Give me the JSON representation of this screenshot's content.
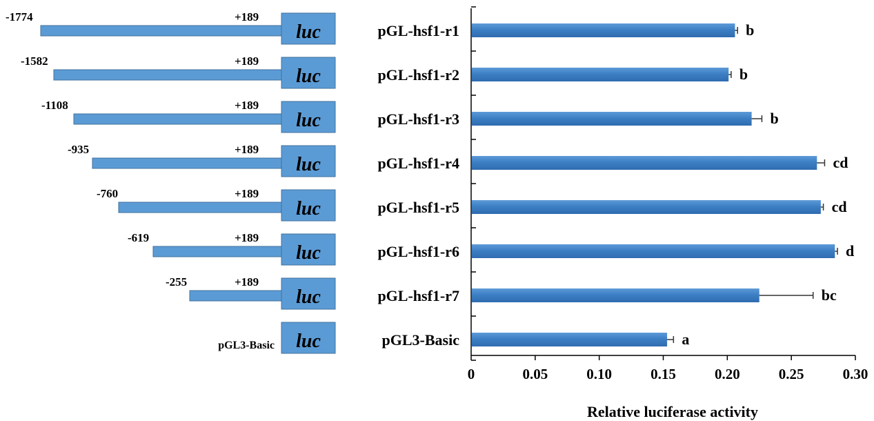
{
  "constructs": [
    {
      "start": "-1774",
      "end": "+189",
      "reporter": "luc"
    },
    {
      "start": "-1582",
      "end": "+189",
      "reporter": "luc"
    },
    {
      "start": "-1108",
      "end": "+189",
      "reporter": "luc"
    },
    {
      "start": "-935",
      "end": "+189",
      "reporter": "luc"
    },
    {
      "start": "-760",
      "end": "+189",
      "reporter": "luc"
    },
    {
      "start": "-619",
      "end": "+189",
      "reporter": "luc"
    },
    {
      "start": "-255",
      "end": "+189",
      "reporter": "luc"
    },
    {
      "start": "pGL3-Basic",
      "end": "",
      "reporter": "luc"
    }
  ],
  "colors": {
    "bar": "#3d7fc4",
    "bar_highlight": "#6aa7e0",
    "bar_dark": "#2a5f9a",
    "construct": "#5b9bd5",
    "construct_border": "#41719c"
  },
  "chart_data": {
    "type": "bar",
    "orientation": "horizontal",
    "title": "",
    "xlabel": "Relative luciferase activity",
    "ylabel": "",
    "xlim": [
      0,
      0.3
    ],
    "xticks": [
      "0",
      "0.05",
      "0.10",
      "0.15",
      "0.20",
      "0.25",
      "0.30"
    ],
    "grid": false,
    "categories": [
      "pGL-hsf1-r1",
      "pGL-hsf1-r2",
      "pGL-hsf1-r3",
      "pGL-hsf1-r4",
      "pGL-hsf1-r5",
      "pGL-hsf1-r6",
      "pGL-hsf1-r7",
      "pGL3-Basic"
    ],
    "values": [
      0.206,
      0.201,
      0.219,
      0.27,
      0.273,
      0.284,
      0.225,
      0.153
    ],
    "errors": [
      0.002,
      0.002,
      0.008,
      0.006,
      0.002,
      0.002,
      0.042,
      0.005
    ],
    "significance": [
      "b",
      "b",
      "b",
      "cd",
      "cd",
      "d",
      "bc",
      "a"
    ]
  }
}
